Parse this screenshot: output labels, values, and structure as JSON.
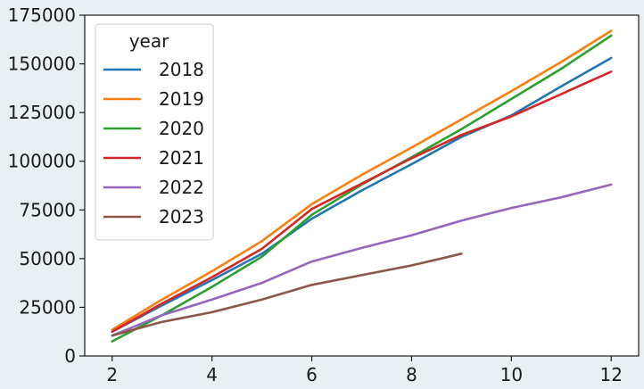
{
  "chart_data": {
    "type": "line",
    "title": "",
    "xlabel": "",
    "ylabel": "",
    "xlim": [
      1.45,
      12.55
    ],
    "ylim": [
      0,
      175000
    ],
    "xticks": [
      2,
      4,
      6,
      8,
      10,
      12
    ],
    "yticks": [
      0,
      25000,
      50000,
      75000,
      100000,
      125000,
      150000,
      175000
    ],
    "grid": false,
    "legend": {
      "title": "year",
      "placement": "top-left"
    },
    "series": [
      {
        "name": "2018",
        "color": "#1f77b4",
        "x": [
          2,
          3,
          4,
          5,
          6,
          7,
          8,
          9,
          10,
          11,
          12
        ],
        "y": [
          12500,
          26000,
          39000,
          52500,
          70500,
          85000,
          98500,
          112500,
          123500,
          138500,
          153000
        ]
      },
      {
        "name": "2019",
        "color": "#ff7f0e",
        "x": [
          2,
          3,
          4,
          5,
          6,
          7,
          8,
          9,
          10,
          11,
          12
        ],
        "y": [
          13500,
          29000,
          43500,
          59000,
          78000,
          93000,
          107000,
          121500,
          136000,
          151000,
          167000
        ]
      },
      {
        "name": "2020",
        "color": "#2ca02c",
        "x": [
          2,
          3,
          4,
          5,
          6,
          7,
          8,
          9,
          10,
          11,
          12
        ],
        "y": [
          7500,
          21000,
          35500,
          51000,
          72500,
          88000,
          102000,
          116500,
          132000,
          147500,
          164500
        ]
      },
      {
        "name": "2021",
        "color": "#d62728",
        "x": [
          2,
          3,
          4,
          5,
          6,
          7,
          8,
          9,
          10,
          11,
          12
        ],
        "y": [
          12500,
          27000,
          40500,
          55000,
          75500,
          88500,
          101500,
          113500,
          123000,
          134500,
          146000
        ]
      },
      {
        "name": "2022",
        "color": "#9467bd",
        "x": [
          2,
          3,
          4,
          5,
          6,
          7,
          8,
          9,
          10,
          11,
          12
        ],
        "y": [
          10500,
          21000,
          29000,
          37500,
          48500,
          55500,
          62000,
          69500,
          76000,
          81500,
          88000
        ]
      },
      {
        "name": "2023",
        "color": "#8c564b",
        "x": [
          2,
          3,
          4,
          5,
          6,
          7,
          8,
          9
        ],
        "y": [
          10500,
          17500,
          22500,
          29000,
          36500,
          41500,
          46500,
          52500
        ]
      }
    ]
  }
}
